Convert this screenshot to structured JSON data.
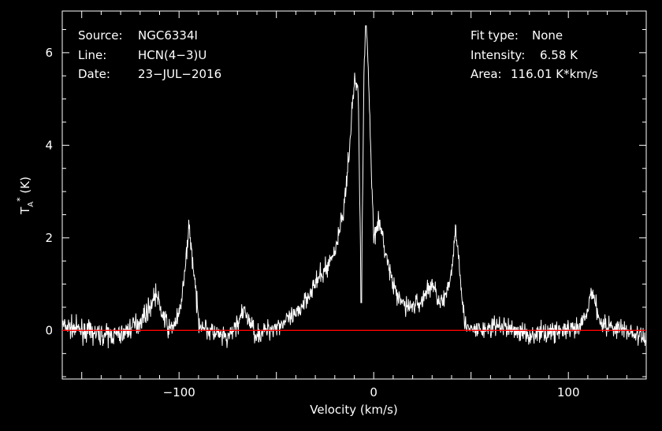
{
  "chart_data": {
    "type": "line",
    "title": "",
    "xlabel": "Velocity (km/s)",
    "ylabel": "T_A* (K)",
    "xlim": [
      -160,
      140
    ],
    "ylim": [
      -1.05,
      6.9
    ],
    "x_ticks": [
      -100,
      0,
      100
    ],
    "x_tick_labels": [
      "−100",
      "0",
      "100"
    ],
    "y_ticks": [
      0,
      2,
      4,
      6
    ],
    "y_tick_labels": [
      "0",
      "2",
      "4",
      "6"
    ],
    "grid": false,
    "baseline": 0,
    "colors": {
      "background": "#000000",
      "spectrum": "#ffffff",
      "baseline": "#ff0000",
      "frame": "#ffffff"
    },
    "info_left": [
      {
        "key": "Source:",
        "value": "NGC6334I"
      },
      {
        "key": "Line:",
        "value": "HCN(4−3)U"
      },
      {
        "key": "Date:",
        "value": "23−JUL−2016"
      }
    ],
    "info_right": [
      {
        "key": "Fit type:",
        "value": "None"
      },
      {
        "key": "Intensity:",
        "value": "6.58 K"
      },
      {
        "key": "Area:",
        "value": "116.01 K*km/s"
      }
    ],
    "series": [
      {
        "values": {
          "x": [
            -160,
            -150,
            -140,
            -130,
            -120,
            -115,
            -112,
            -109,
            -105,
            -100,
            -97,
            -95,
            -93,
            -90,
            -85,
            -75,
            -68,
            -66,
            -64,
            -60,
            -50,
            -40,
            -35,
            -30,
            -25,
            -20,
            -15,
            -12,
            -10,
            -8,
            -6.5,
            -6,
            -5,
            -4,
            -3,
            -2,
            0,
            2,
            4,
            8,
            12,
            18,
            24,
            28,
            30,
            32,
            35,
            38,
            40,
            42,
            44,
            46,
            48,
            55,
            65,
            80,
            95,
            105,
            110,
            112,
            114,
            116,
            120,
            130,
            140
          ],
          "y": [
            0.1,
            0.0,
            -0.1,
            -0.1,
            0.2,
            0.5,
            0.8,
            0.4,
            0.0,
            0.3,
            1.2,
            2.3,
            1.5,
            0.2,
            0.0,
            -0.2,
            0.3,
            0.4,
            0.2,
            -0.1,
            0.1,
            0.3,
            0.7,
            1.0,
            1.3,
            1.7,
            2.7,
            4.2,
            5.4,
            5.2,
            1.2,
            2.0,
            5.5,
            6.58,
            6.0,
            4.5,
            2.0,
            2.4,
            2.1,
            1.3,
            0.7,
            0.5,
            0.6,
            0.9,
            1.0,
            0.8,
            0.6,
            0.8,
            1.3,
            2.2,
            1.5,
            0.4,
            0.0,
            0.0,
            0.1,
            -0.1,
            0.0,
            0.0,
            0.4,
            0.9,
            0.6,
            0.2,
            0.1,
            0.0,
            -0.2
          ]
        }
      }
    ]
  }
}
